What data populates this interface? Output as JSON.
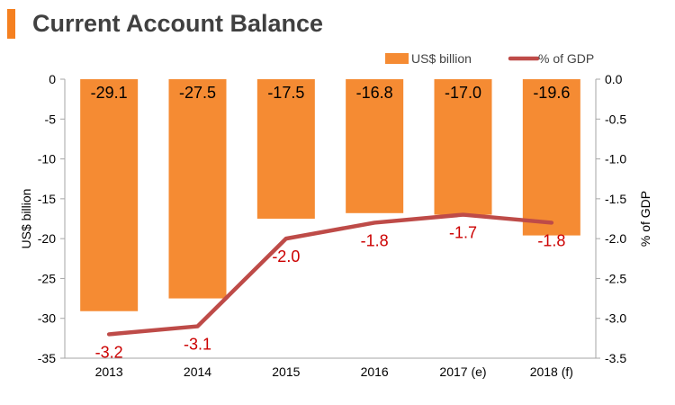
{
  "title": "Current Account Balance",
  "colors": {
    "accent": "#f58020",
    "bar": "#f58b33",
    "line": "#be4b48",
    "line_label": "#cc0000"
  },
  "chart_data": {
    "type": "bar",
    "categories": [
      "2013",
      "2014",
      "2015",
      "2016",
      "2017 (e)",
      "2018 (f)"
    ],
    "series": [
      {
        "name": "US$ billion",
        "type": "bar",
        "axis": "left",
        "values": [
          -29.1,
          -27.5,
          -17.5,
          -16.8,
          -17.0,
          -19.6
        ],
        "labels": [
          "-29.1",
          "-27.5",
          "-17.5",
          "-16.8",
          "-17.0",
          "-19.6"
        ]
      },
      {
        "name": "% of GDP",
        "type": "line",
        "axis": "right",
        "values": [
          -3.2,
          -3.1,
          -2.0,
          -1.8,
          -1.7,
          -1.8
        ],
        "labels": [
          "-3.2",
          "-3.1",
          "-2.0",
          "-1.8",
          "-1.7",
          "-1.8"
        ]
      }
    ],
    "ylabel": "US$ billion",
    "y2label": "% of GDP",
    "ylim": [
      -35,
      0
    ],
    "y2lim": [
      -3.5,
      0
    ],
    "yticks": [
      "0",
      "-5",
      "-10",
      "-15",
      "-20",
      "-25",
      "-30",
      "-35"
    ],
    "y2ticks": [
      "0.0",
      "-0.5",
      "-1.0",
      "-1.5",
      "-2.0",
      "-2.5",
      "-3.0",
      "-3.5"
    ],
    "grid": false,
    "legend": "top-right"
  }
}
